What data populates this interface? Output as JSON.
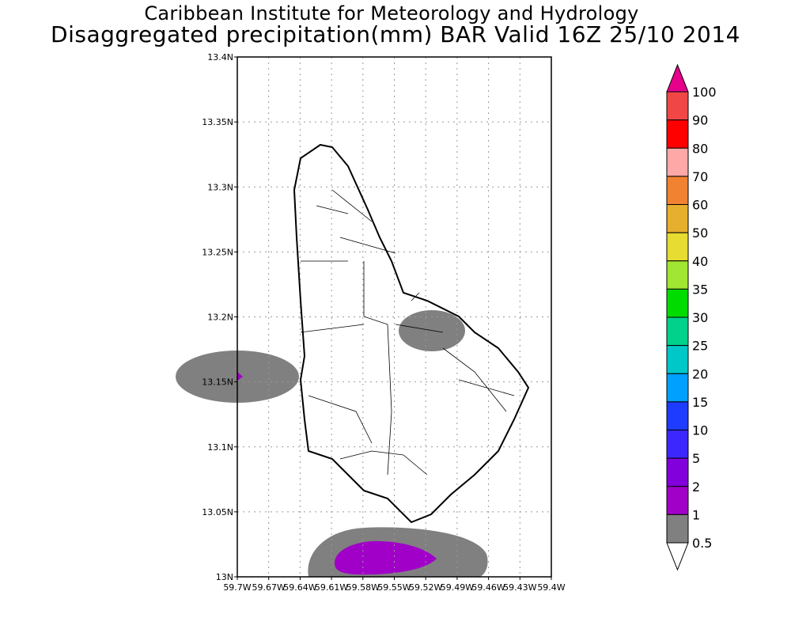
{
  "title": {
    "line1": "Caribbean Institute for Meteorology and Hydrology",
    "line2": "Disaggregated precipitation(mm) BAR Valid 16Z 25/10 2014"
  },
  "map": {
    "lat_range": [
      13.0,
      13.4
    ],
    "lon_range": [
      -59.7,
      -59.4
    ],
    "lat_labels": [
      "13.4N",
      "13.35N",
      "13.3N",
      "13.25N",
      "13.2N",
      "13.15N",
      "13.1N",
      "13.05N",
      "13N"
    ],
    "lat_values": [
      13.4,
      13.35,
      13.3,
      13.25,
      13.2,
      13.15,
      13.1,
      13.05,
      13.0
    ],
    "lon_labels": [
      "59.7W",
      "59.67W",
      "59.64W",
      "59.61W",
      "59.58W",
      "59.55W",
      "59.52W",
      "59.49W",
      "59.46W",
      "59.43W",
      "59.4W"
    ],
    "lon_values": [
      -59.7,
      -59.67,
      -59.64,
      -59.61,
      -59.58,
      -59.55,
      -59.52,
      -59.49,
      -59.46,
      -59.43,
      -59.4
    ]
  },
  "colorbar": {
    "labels": [
      "100",
      "90",
      "80",
      "70",
      "60",
      "50",
      "40",
      "35",
      "30",
      "25",
      "20",
      "15",
      "10",
      "5",
      "2",
      "1",
      "0.5"
    ],
    "colors": [
      "#f04646",
      "#ff0000",
      "#ffa8a8",
      "#f08232",
      "#e6af2d",
      "#e6dc32",
      "#a0e632",
      "#00dc00",
      "#00d28c",
      "#00c8c8",
      "#00a0ff",
      "#1e3cff",
      "#3c28ff",
      "#8200dc",
      "#a000c8",
      "#808080"
    ],
    "over_color": "#e6008c",
    "under_color": "#ffffff"
  }
}
